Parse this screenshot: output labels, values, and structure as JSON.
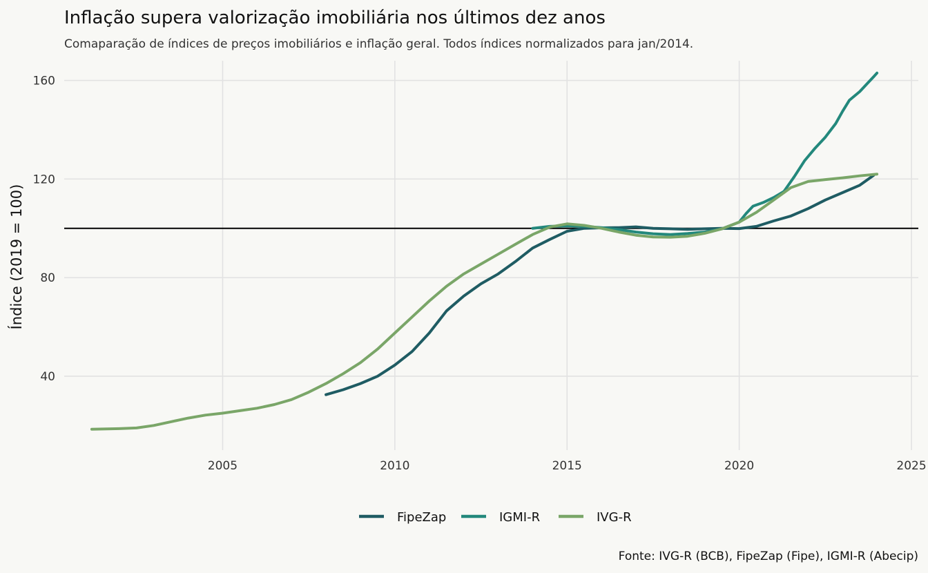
{
  "chart_data": {
    "type": "line",
    "title": "Inflação supera valorização imobiliária nos últimos dez anos",
    "subtitle": "Comaparação de índices de preços imobiliários e inflação geral. Todos índices normalizados para jan/2014.",
    "xlabel": "",
    "ylabel": "Índice (2019 = 100)",
    "caption": "Fonte: IVG-R (BCB), FipeZap (Fipe), IGMI-R (Abecip)",
    "xlim": [
      2000.4,
      2025.2
    ],
    "ylim": [
      10,
      168
    ],
    "x_ticks": [
      2005,
      2010,
      2015,
      2020,
      2025
    ],
    "x_tick_labels": [
      "2005",
      "2010",
      "2015",
      "2020",
      "2025"
    ],
    "y_ticks": [
      40,
      80,
      120,
      160
    ],
    "y_tick_labels": [
      "40",
      "80",
      "120",
      "160"
    ],
    "reference_line": 100,
    "grid": true,
    "legend_position": "bottom",
    "series": [
      {
        "name": "FipeZap",
        "color": "#1f5c63",
        "points": [
          [
            2008.0,
            32.5
          ],
          [
            2008.5,
            34.5
          ],
          [
            2009.0,
            37.0
          ],
          [
            2009.5,
            40.0
          ],
          [
            2010.0,
            44.5
          ],
          [
            2010.5,
            50.0
          ],
          [
            2011.0,
            57.5
          ],
          [
            2011.5,
            66.5
          ],
          [
            2012.0,
            72.5
          ],
          [
            2012.5,
            77.5
          ],
          [
            2013.0,
            81.5
          ],
          [
            2013.5,
            86.5
          ],
          [
            2014.0,
            92.0
          ],
          [
            2014.5,
            95.5
          ],
          [
            2015.0,
            98.8
          ],
          [
            2015.5,
            100.0
          ],
          [
            2016.0,
            100.2
          ],
          [
            2016.5,
            100.3
          ],
          [
            2017.0,
            100.6
          ],
          [
            2017.5,
            100.0
          ],
          [
            2018.0,
            99.8
          ],
          [
            2018.5,
            99.6
          ],
          [
            2019.0,
            99.8
          ],
          [
            2019.5,
            100.0
          ],
          [
            2020.0,
            99.9
          ],
          [
            2020.5,
            100.8
          ],
          [
            2021.0,
            103.0
          ],
          [
            2021.5,
            105.0
          ],
          [
            2022.0,
            108.0
          ],
          [
            2022.5,
            111.5
          ],
          [
            2023.0,
            114.5
          ],
          [
            2023.5,
            117.5
          ],
          [
            2023.9,
            121.5
          ]
        ]
      },
      {
        "name": "IGMI-R",
        "color": "#23887c",
        "points": [
          [
            2014.0,
            100.0
          ],
          [
            2014.5,
            100.8
          ],
          [
            2015.0,
            101.0
          ],
          [
            2015.5,
            100.8
          ],
          [
            2016.0,
            100.3
          ],
          [
            2016.5,
            99.5
          ],
          [
            2017.0,
            98.5
          ],
          [
            2017.5,
            97.8
          ],
          [
            2018.0,
            97.5
          ],
          [
            2018.5,
            97.9
          ],
          [
            2019.0,
            98.5
          ],
          [
            2019.5,
            99.8
          ],
          [
            2020.0,
            102.5
          ],
          [
            2020.2,
            106.0
          ],
          [
            2020.4,
            109.0
          ],
          [
            2020.7,
            110.5
          ],
          [
            2021.0,
            112.5
          ],
          [
            2021.3,
            115.0
          ],
          [
            2021.6,
            121.0
          ],
          [
            2021.9,
            127.5
          ],
          [
            2022.2,
            132.5
          ],
          [
            2022.5,
            137.0
          ],
          [
            2022.8,
            142.5
          ],
          [
            2023.0,
            147.5
          ],
          [
            2023.2,
            152.0
          ],
          [
            2023.5,
            155.5
          ],
          [
            2023.7,
            158.5
          ],
          [
            2023.9,
            161.5
          ],
          [
            2024.0,
            163.0
          ]
        ]
      },
      {
        "name": "IVG-R",
        "color": "#7aa668",
        "points": [
          [
            2001.2,
            18.5
          ],
          [
            2002.0,
            18.7
          ],
          [
            2002.5,
            19.0
          ],
          [
            2003.0,
            20.0
          ],
          [
            2003.5,
            21.5
          ],
          [
            2004.0,
            23.0
          ],
          [
            2004.5,
            24.2
          ],
          [
            2005.0,
            25.0
          ],
          [
            2005.5,
            26.0
          ],
          [
            2006.0,
            27.0
          ],
          [
            2006.5,
            28.5
          ],
          [
            2007.0,
            30.5
          ],
          [
            2007.5,
            33.5
          ],
          [
            2008.0,
            37.0
          ],
          [
            2008.5,
            41.0
          ],
          [
            2009.0,
            45.5
          ],
          [
            2009.5,
            51.0
          ],
          [
            2010.0,
            57.5
          ],
          [
            2010.5,
            64.0
          ],
          [
            2011.0,
            70.5
          ],
          [
            2011.5,
            76.5
          ],
          [
            2012.0,
            81.5
          ],
          [
            2012.5,
            85.5
          ],
          [
            2013.0,
            89.5
          ],
          [
            2013.5,
            93.5
          ],
          [
            2014.0,
            97.5
          ],
          [
            2014.5,
            100.5
          ],
          [
            2015.0,
            101.8
          ],
          [
            2015.5,
            101.2
          ],
          [
            2016.0,
            100.0
          ],
          [
            2016.5,
            98.5
          ],
          [
            2017.0,
            97.2
          ],
          [
            2017.5,
            96.5
          ],
          [
            2018.0,
            96.4
          ],
          [
            2018.5,
            96.8
          ],
          [
            2019.0,
            98.0
          ],
          [
            2019.5,
            99.8
          ],
          [
            2020.0,
            102.5
          ],
          [
            2020.5,
            106.5
          ],
          [
            2021.0,
            111.5
          ],
          [
            2021.5,
            116.5
          ],
          [
            2022.0,
            119.0
          ],
          [
            2022.5,
            119.8
          ],
          [
            2023.0,
            120.5
          ],
          [
            2023.5,
            121.3
          ],
          [
            2024.0,
            122.0
          ]
        ]
      }
    ]
  }
}
